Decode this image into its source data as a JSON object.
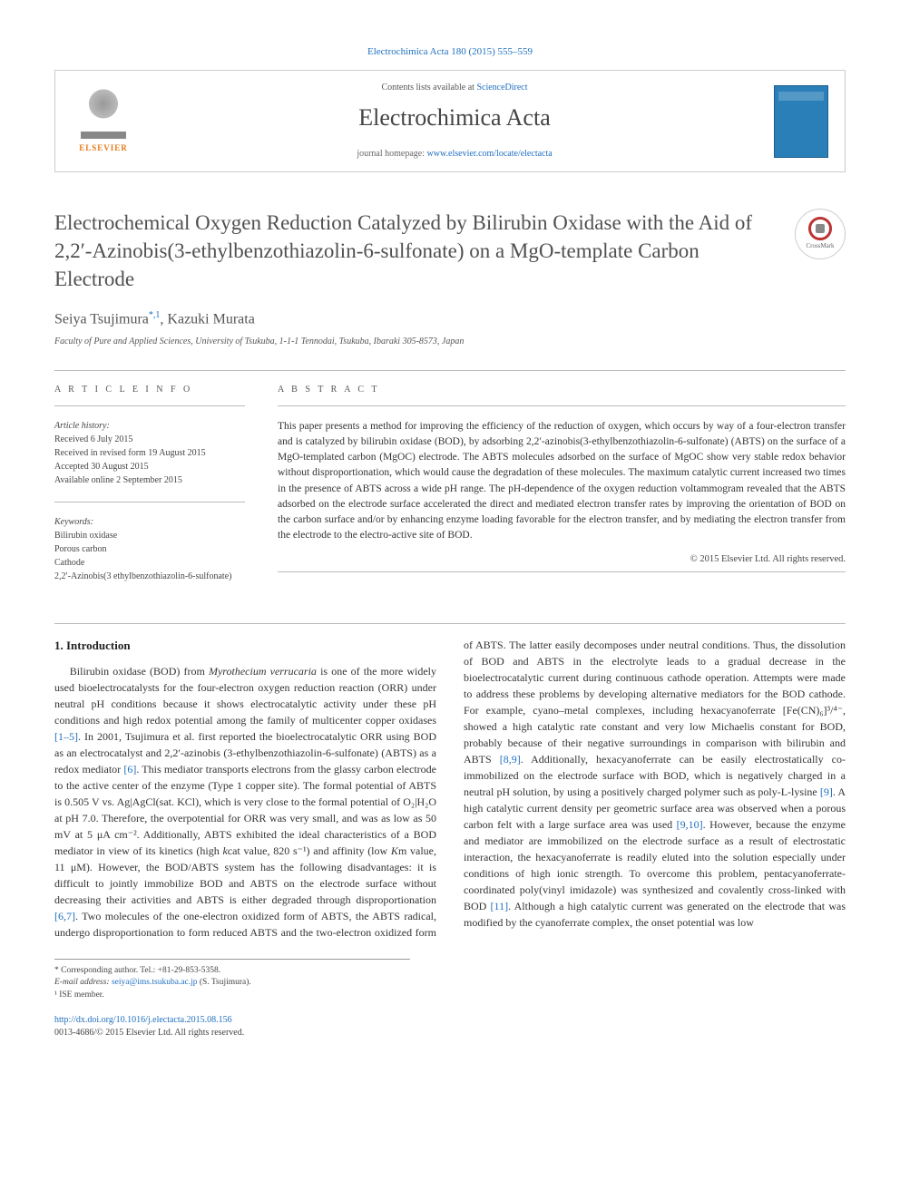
{
  "top_link": {
    "journal": "Electrochimica Acta",
    "citation": "180 (2015) 555–559"
  },
  "header": {
    "elsevier": "ELSEVIER",
    "contents_prefix": "Contents lists available at ",
    "contents_link": "ScienceDirect",
    "journal_name": "Electrochimica Acta",
    "homepage_prefix": "journal homepage: ",
    "homepage_url": "www.elsevier.com/locate/electacta"
  },
  "crossmark_label": "CrossMark",
  "article": {
    "title": "Electrochemical Oxygen Reduction Catalyzed by Bilirubin Oxidase with the Aid of 2,2′-Azinobis(3-ethylbenzothiazolin-6-sulfonate) on a MgO-template Carbon Electrode",
    "authors_html": "Seiya Tsujimura",
    "author_sup": "*,1",
    "author2": ", Kazuki Murata",
    "affiliation": "Faculty of Pure and Applied Sciences, University of Tsukuba, 1-1-1 Tennodai, Tsukuba, Ibaraki 305-8573, Japan"
  },
  "info": {
    "label": "A R T I C L E   I N F O",
    "history_label": "Article history:",
    "history": [
      "Received 6 July 2015",
      "Received in revised form 19 August 2015",
      "Accepted 30 August 2015",
      "Available online 2 September 2015"
    ],
    "keywords_label": "Keywords:",
    "keywords": [
      "Bilirubin oxidase",
      "Porous carbon",
      "Cathode",
      "2,2′-Azinobis(3 ethylbenzothiazolin-6-sulfonate)"
    ]
  },
  "abstract": {
    "label": "A B S T R A C T",
    "text": "This paper presents a method for improving the efficiency of the reduction of oxygen, which occurs by way of a four-electron transfer and is catalyzed by bilirubin oxidase (BOD), by adsorbing 2,2′-azinobis(3-ethylbenzothiazolin-6-sulfonate) (ABTS) on the surface of a MgO-templated carbon (MgOC) electrode. The ABTS molecules adsorbed on the surface of MgOC show very stable redox behavior without disproportionation, which would cause the degradation of these molecules. The maximum catalytic current increased two times in the presence of ABTS across a wide pH range. The pH-dependence of the oxygen reduction voltammogram revealed that the ABTS adsorbed on the electrode surface accelerated the direct and mediated electron transfer rates by improving the orientation of BOD on the carbon surface and/or by enhancing enzyme loading favorable for the electron transfer, and by mediating the electron transfer from the electrode to the electro-active site of BOD.",
    "copyright": "© 2015 Elsevier Ltd. All rights reserved."
  },
  "body": {
    "heading": "1. Introduction",
    "para1_a": "Bilirubin oxidase (BOD) from ",
    "para1_em": "Myrothecium verrucaria",
    "para1_b": " is one of the more widely used bioelectrocatalysts for the four-electron oxygen reduction reaction (ORR) under neutral pH conditions because it shows electrocatalytic activity under these pH conditions and high redox potential among the family of multicenter copper oxidases ",
    "ref1": "[1–5]",
    "para1_c": ". In 2001, Tsujimura et al. first reported the bioelectrocatalytic ORR using BOD as an electrocatalyst and 2,2′-azinobis (3-ethylbenzothiazolin-6-sulfonate) (ABTS) as a redox mediator ",
    "ref2": "[6]",
    "para1_d": ". This mediator transports electrons from the glassy carbon electrode to the active center of the enzyme (Type 1 copper site). The formal potential of ABTS is 0.505 V vs. Ag|AgCl(sat. KCl), which is very close to the formal potential of O₂|H₂O at pH 7.0. Therefore, the overpotential for ORR was very small, and was as low as 50 mV at 5 μA cm⁻². Additionally, ABTS exhibited the ideal characteristics of a BOD mediator in view of its kinetics (high ",
    "para1_kcat_label": "k",
    "para1_kcat_body": "cat value, 820 s⁻¹) and affinity (low ",
    "para1_km_label": "K",
    "para1_km_body": "m value, 11 μM). However, the BOD/ABTS system has the following disadvantages: it is difficult to jointly immobilize BOD and ABTS on the electrode surface without decreasing their activities and ABTS is either ",
    "para2_a": "degraded through disproportionation ",
    "ref3": "[6,7]",
    "para2_b": ". Two molecules of the one-electron oxidized form of ABTS, the ABTS radical, undergo disproportionation to form reduced ABTS and the two-electron oxidized form of ABTS. The latter easily decomposes under neutral conditions. Thus, the dissolution of BOD and ABTS in the electrolyte leads to a gradual decrease in the bioelectrocatalytic current during continuous cathode operation. Attempts were made to address these problems by developing alternative mediators for the BOD cathode. For example, cyano–metal complexes, including hexacyanoferrate [Fe(CN)₆]³/⁴⁻, showed a high catalytic rate constant and very low Michaelis constant for BOD, probably because of their negative surroundings in comparison with bilirubin and ABTS ",
    "ref4": "[8,9]",
    "para2_c": ". Additionally, hexacyanoferrate can be easily electrostatically co-immobilized on the electrode surface with BOD, which is negatively charged in a neutral pH solution, by using a positively charged polymer such as poly-L-lysine ",
    "ref5": "[9]",
    "para2_d": ". A high catalytic current density per geometric surface area was observed when a porous carbon felt with a large surface area was used ",
    "ref6": "[9,10]",
    "para2_e": ". However, because the enzyme and mediator are immobilized on the electrode surface as a result of electrostatic interaction, the hexacyanoferrate is readily eluted into the solution especially under conditions of high ionic strength. To overcome this problem, pentacyanoferrate-coordinated poly(vinyl imidazole) was synthesized and covalently cross-linked with BOD ",
    "ref7": "[11]",
    "para2_f": ". Although a high catalytic current was generated on the electrode that was modified by the cyanoferrate complex, the onset potential was low"
  },
  "footnotes": {
    "corr_label": "* Corresponding author. Tel.: +81-29-853-5358.",
    "email_label": "E-mail address: ",
    "email": "seiya@ims.tsukuba.ac.jp",
    "email_suffix": " (S. Tsujimura).",
    "note1": "¹ ISE member."
  },
  "doi": {
    "url": "http://dx.doi.org/10.1016/j.electacta.2015.08.156",
    "issn_line": "0013-4686/© 2015 Elsevier Ltd. All rights reserved."
  }
}
